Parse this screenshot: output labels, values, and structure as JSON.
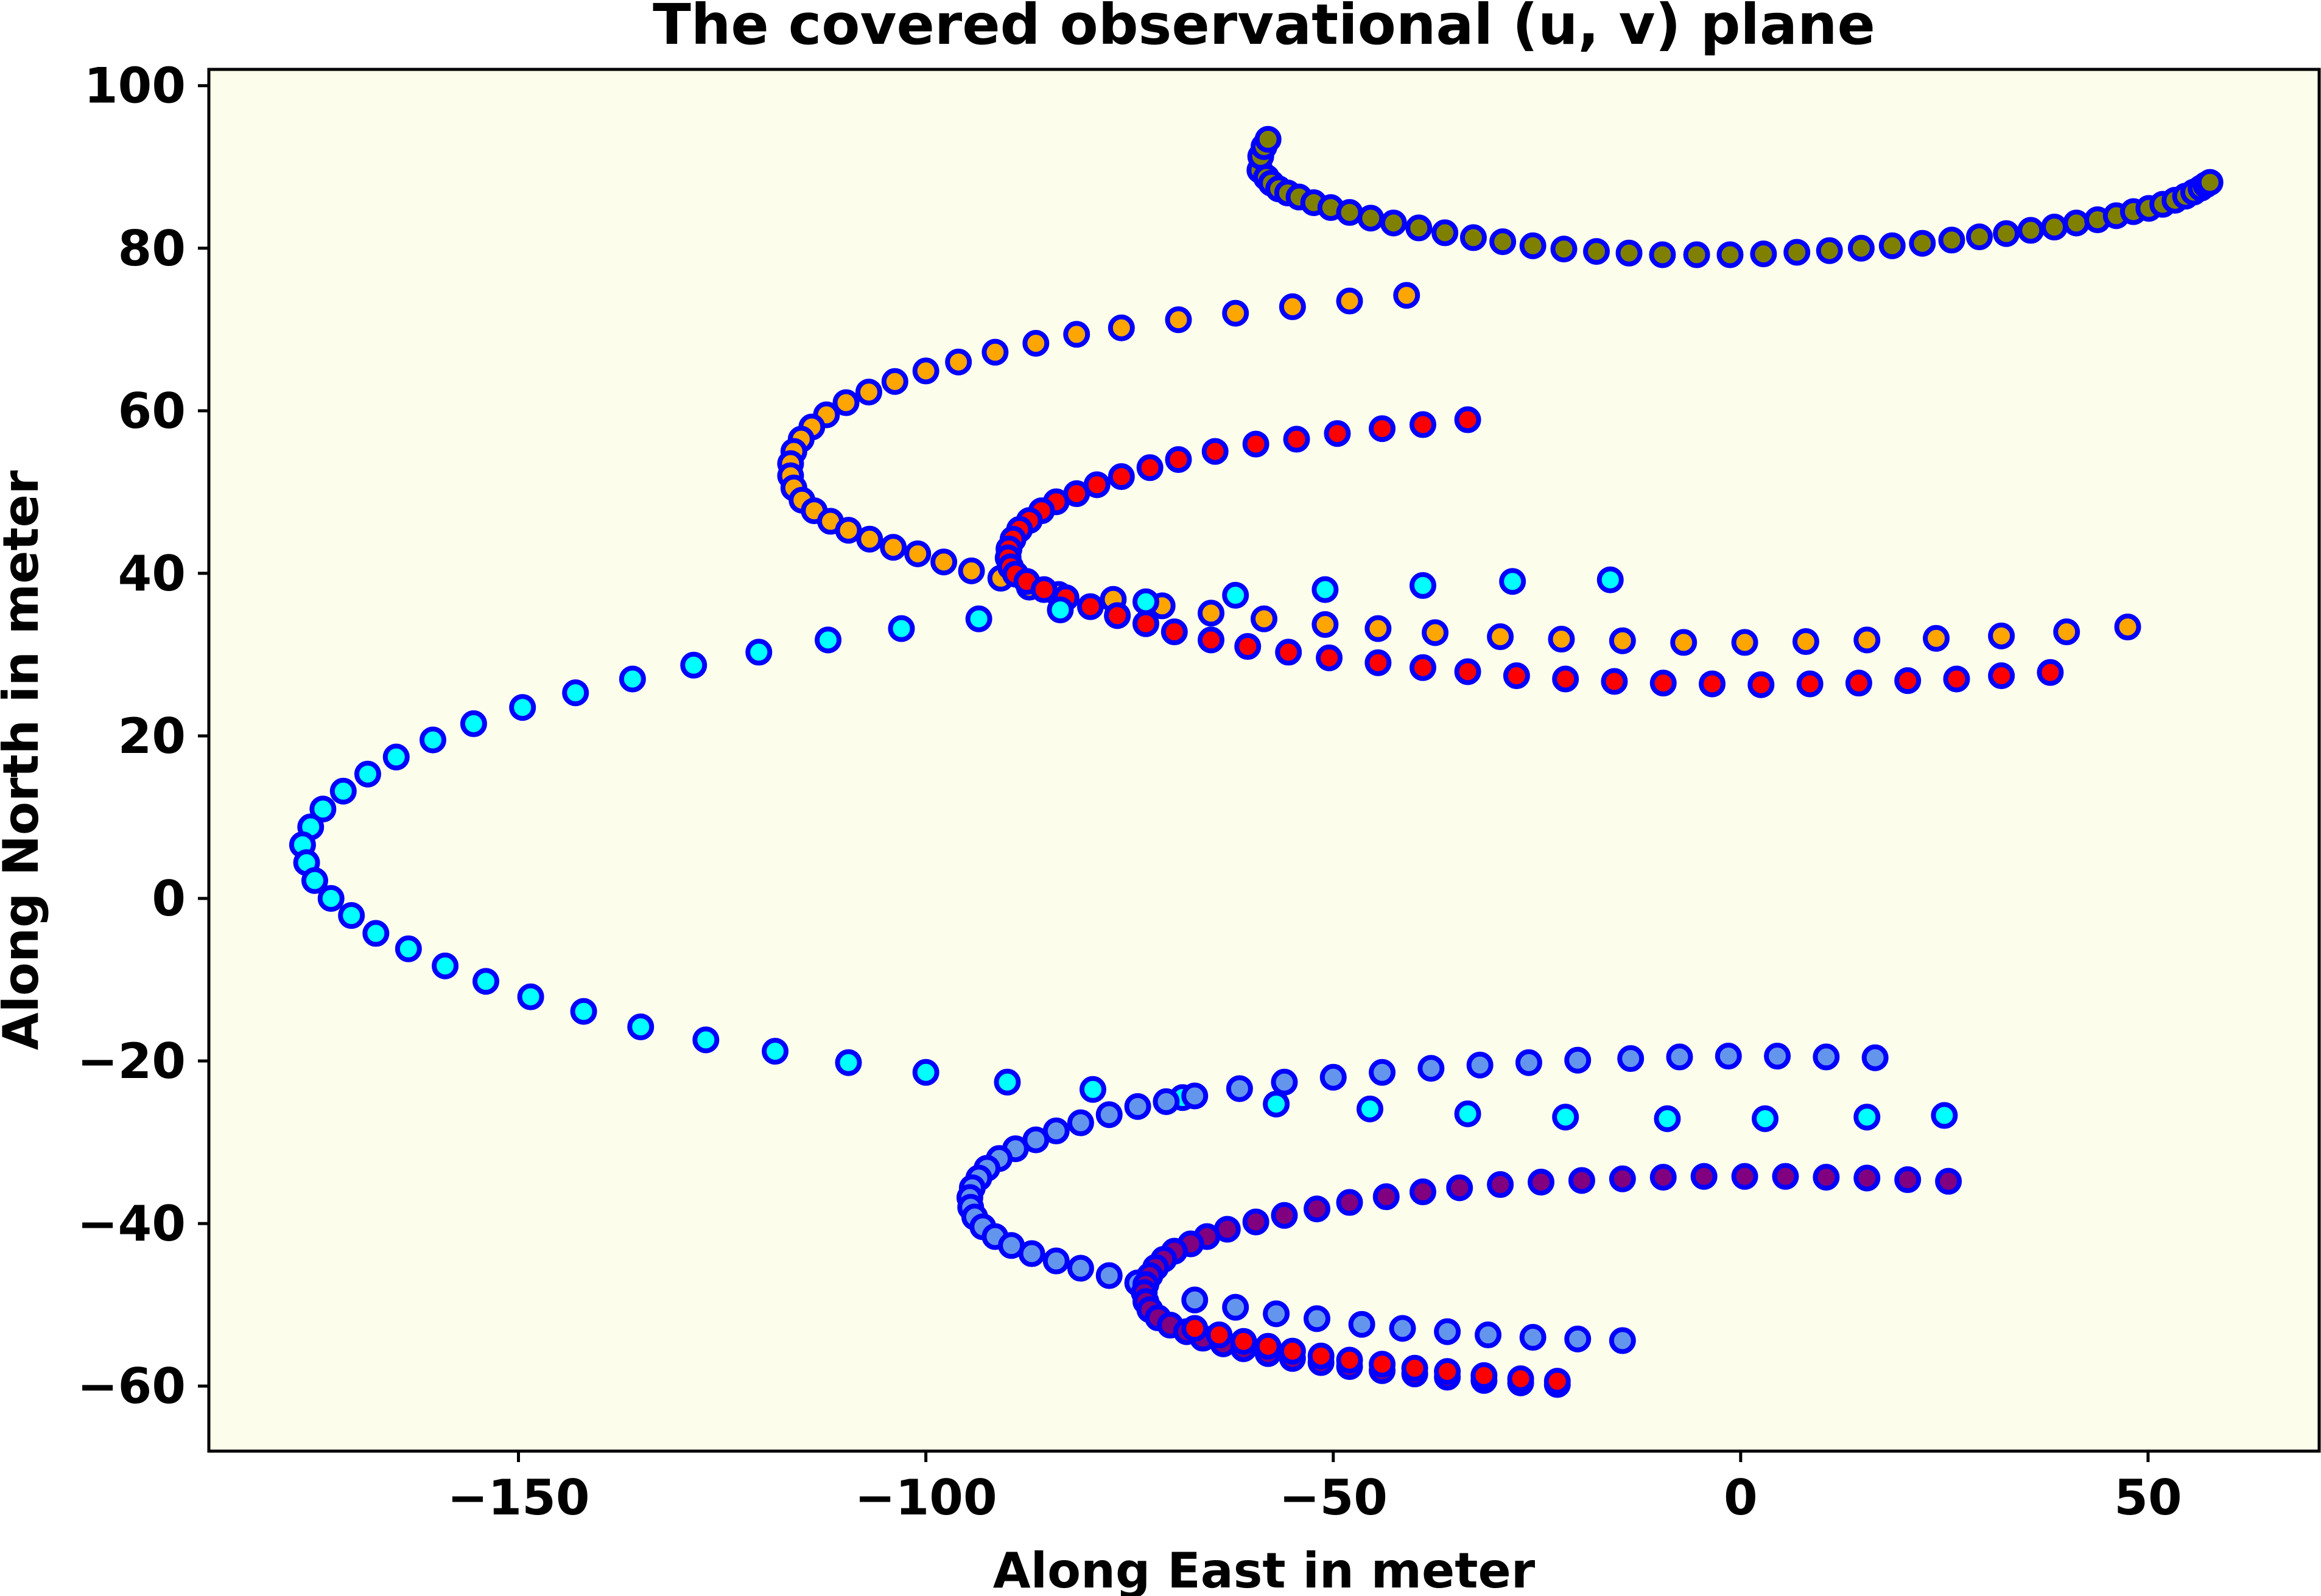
{
  "chart_data": {
    "type": "scatter",
    "title": "The covered observational (u, v) plane",
    "xlabel": "Along East in meter",
    "ylabel": "Along North in meter",
    "xlim": [
      -188,
      71
    ],
    "ylim": [
      -68,
      102
    ],
    "xticks": [
      -150,
      -100,
      -50,
      0,
      50
    ],
    "xtick_labels": [
      "−150",
      "−100",
      "−50",
      "0",
      "50"
    ],
    "yticks": [
      -60,
      -40,
      -20,
      0,
      20,
      40,
      60,
      80,
      100
    ],
    "ytick_labels": [
      "−60",
      "−40",
      "−20",
      "0",
      "20",
      "40",
      "60",
      "80",
      "100"
    ],
    "grid": false,
    "legend": "none",
    "colors": {
      "plot_background": "#fdfdeb",
      "marker_edge": "#0000ff"
    },
    "series": [
      {
        "color": "#808000",
        "points": [
          [
            -59.0,
            89.6
          ],
          [
            -58.9,
            91.3
          ],
          [
            -58.5,
            92.5
          ],
          [
            -58.0,
            93.4
          ],
          [
            -58.2,
            88.7
          ],
          [
            -57.6,
            88.0
          ],
          [
            -56.7,
            87.3
          ],
          [
            -55.6,
            86.8
          ],
          [
            -54.2,
            86.3
          ],
          [
            -52.4,
            85.6
          ],
          [
            -50.3,
            85.0
          ],
          [
            -48.0,
            84.4
          ],
          [
            -45.4,
            83.7
          ],
          [
            -42.6,
            83.1
          ],
          [
            -39.5,
            82.5
          ],
          [
            -36.3,
            81.9
          ],
          [
            -32.8,
            81.3
          ],
          [
            -29.2,
            80.8
          ],
          [
            -25.5,
            80.3
          ],
          [
            -21.7,
            79.9
          ],
          [
            -17.7,
            79.6
          ],
          [
            -13.7,
            79.4
          ],
          [
            -9.6,
            79.2
          ],
          [
            -5.4,
            79.2
          ],
          [
            -1.3,
            79.2
          ],
          [
            2.8,
            79.3
          ],
          [
            6.9,
            79.5
          ],
          [
            10.9,
            79.7
          ],
          [
            14.8,
            80.0
          ],
          [
            18.6,
            80.3
          ],
          [
            22.3,
            80.6
          ],
          [
            25.9,
            81.0
          ],
          [
            29.3,
            81.4
          ],
          [
            32.6,
            81.8
          ],
          [
            35.6,
            82.2
          ],
          [
            38.5,
            82.6
          ],
          [
            41.2,
            83.1
          ],
          [
            43.8,
            83.5
          ],
          [
            46.1,
            84.0
          ],
          [
            48.2,
            84.5
          ],
          [
            50.1,
            84.9
          ],
          [
            51.8,
            85.4
          ],
          [
            53.3,
            85.9
          ],
          [
            54.6,
            86.4
          ],
          [
            55.6,
            86.9
          ],
          [
            56.5,
            87.4
          ],
          [
            57.1,
            87.8
          ],
          [
            57.6,
            88.1
          ]
        ]
      },
      {
        "color": "#ffa500",
        "points": [
          [
            -41.0,
            74.2
          ],
          [
            -48.0,
            73.5
          ],
          [
            -55.0,
            72.8
          ],
          [
            -62.0,
            72.0
          ],
          [
            -69.0,
            71.2
          ],
          [
            -76.0,
            70.2
          ],
          [
            -81.5,
            69.4
          ],
          [
            -86.5,
            68.3
          ],
          [
            -91.5,
            67.2
          ],
          [
            -96.0,
            66.0
          ],
          [
            -100.0,
            64.9
          ],
          [
            -103.8,
            63.6
          ],
          [
            -107.0,
            62.3
          ],
          [
            -109.8,
            61.0
          ],
          [
            -112.2,
            59.5
          ],
          [
            -114.0,
            58.0
          ],
          [
            -115.3,
            56.5
          ],
          [
            -116.2,
            55.0
          ],
          [
            -116.6,
            53.5
          ],
          [
            -116.6,
            52.0
          ],
          [
            -116.2,
            50.5
          ],
          [
            -115.2,
            49.0
          ],
          [
            -113.7,
            47.7
          ],
          [
            -111.7,
            46.4
          ],
          [
            -109.5,
            45.3
          ],
          [
            -106.9,
            44.2
          ],
          [
            -104.0,
            43.2
          ],
          [
            -101.0,
            42.4
          ],
          [
            -97.8,
            41.4
          ],
          [
            -94.4,
            40.3
          ],
          [
            -90.8,
            39.4
          ],
          [
            -87.3,
            38.3
          ],
          [
            -83.7,
            37.4
          ],
          [
            -77.0,
            36.8
          ],
          [
            -71.0,
            36.0
          ],
          [
            -65.0,
            35.1
          ],
          [
            -58.5,
            34.4
          ],
          [
            -51.0,
            33.7
          ],
          [
            -44.5,
            33.2
          ],
          [
            -37.5,
            32.7
          ],
          [
            -29.5,
            32.2
          ],
          [
            -22.0,
            31.9
          ],
          [
            -14.5,
            31.7
          ],
          [
            -7.0,
            31.5
          ],
          [
            0.5,
            31.5
          ],
          [
            8.0,
            31.6
          ],
          [
            15.5,
            31.8
          ],
          [
            24.0,
            32.0
          ],
          [
            32.0,
            32.3
          ],
          [
            40.0,
            32.8
          ],
          [
            47.5,
            33.4
          ]
        ]
      },
      {
        "color": "#ff0000",
        "points": [
          [
            -33.5,
            58.9
          ],
          [
            -39.0,
            58.3
          ],
          [
            -44.0,
            57.8
          ],
          [
            -49.5,
            57.2
          ],
          [
            -54.5,
            56.5
          ],
          [
            -59.5,
            55.9
          ],
          [
            -64.5,
            55.0
          ],
          [
            -69.0,
            54.0
          ],
          [
            -72.5,
            53.0
          ],
          [
            -76.0,
            51.9
          ],
          [
            -79.0,
            50.9
          ],
          [
            -81.5,
            49.8
          ],
          [
            -84.0,
            48.8
          ],
          [
            -85.8,
            47.7
          ],
          [
            -87.3,
            46.5
          ],
          [
            -88.5,
            45.4
          ],
          [
            -89.3,
            44.2
          ],
          [
            -89.8,
            43.0
          ],
          [
            -89.9,
            41.9
          ],
          [
            -89.6,
            40.8
          ],
          [
            -89.0,
            39.9
          ],
          [
            -87.6,
            39.0
          ],
          [
            -85.5,
            38.0
          ],
          [
            -82.8,
            37.0
          ],
          [
            -79.8,
            35.9
          ],
          [
            -76.5,
            34.8
          ],
          [
            -73.0,
            33.8
          ],
          [
            -69.5,
            32.8
          ],
          [
            -65.0,
            31.8
          ],
          [
            -60.5,
            31.0
          ],
          [
            -55.5,
            30.3
          ],
          [
            -50.5,
            29.6
          ],
          [
            -44.5,
            29.0
          ],
          [
            -39.0,
            28.4
          ],
          [
            -33.5,
            27.9
          ],
          [
            -27.5,
            27.4
          ],
          [
            -21.5,
            27.0
          ],
          [
            -15.5,
            26.7
          ],
          [
            -9.5,
            26.5
          ],
          [
            -3.5,
            26.4
          ],
          [
            2.5,
            26.3
          ],
          [
            8.5,
            26.4
          ],
          [
            14.5,
            26.5
          ],
          [
            20.5,
            26.8
          ],
          [
            26.5,
            27.0
          ],
          [
            32.0,
            27.4
          ],
          [
            38.0,
            27.8
          ]
        ]
      },
      {
        "color": "#00ffff",
        "points": [
          [
            -16.0,
            39.2
          ],
          [
            -28.0,
            39.0
          ],
          [
            -39.0,
            38.5
          ],
          [
            -51.0,
            38.0
          ],
          [
            -62.0,
            37.3
          ],
          [
            -73.0,
            36.5
          ],
          [
            -83.5,
            35.5
          ],
          [
            -93.5,
            34.4
          ],
          [
            -103.0,
            33.2
          ],
          [
            -112.0,
            31.8
          ],
          [
            -120.5,
            30.3
          ],
          [
            -128.5,
            28.7
          ],
          [
            -136.0,
            27.0
          ],
          [
            -143.0,
            25.3
          ],
          [
            -149.5,
            23.5
          ],
          [
            -155.5,
            21.5
          ],
          [
            -160.5,
            19.5
          ],
          [
            -165.0,
            17.4
          ],
          [
            -168.5,
            15.3
          ],
          [
            -171.5,
            13.2
          ],
          [
            -174.0,
            11.0
          ],
          [
            -175.5,
            8.8
          ],
          [
            -176.5,
            6.6
          ],
          [
            -176.0,
            4.4
          ],
          [
            -175.0,
            2.2
          ],
          [
            -173.0,
            0.0
          ],
          [
            -170.5,
            -2.1
          ],
          [
            -167.5,
            -4.3
          ],
          [
            -163.5,
            -6.2
          ],
          [
            -159.0,
            -8.3
          ],
          [
            -154.0,
            -10.2
          ],
          [
            -148.5,
            -12.1
          ],
          [
            -142.0,
            -13.9
          ],
          [
            -135.0,
            -15.8
          ],
          [
            -127.0,
            -17.4
          ],
          [
            -118.5,
            -18.8
          ],
          [
            -109.5,
            -20.2
          ],
          [
            -100.0,
            -21.4
          ],
          [
            -90.0,
            -22.6
          ],
          [
            -79.5,
            -23.5
          ],
          [
            -68.5,
            -24.5
          ],
          [
            -57.0,
            -25.3
          ],
          [
            -45.5,
            -25.9
          ],
          [
            -33.5,
            -26.5
          ],
          [
            -21.5,
            -26.9
          ],
          [
            -9.0,
            -27.1
          ],
          [
            3.0,
            -27.1
          ],
          [
            15.5,
            -26.9
          ],
          [
            25.0,
            -26.7
          ]
        ]
      },
      {
        "color": "#6495ed",
        "points": [
          [
            16.5,
            -19.6
          ],
          [
            10.5,
            -19.5
          ],
          [
            4.5,
            -19.4
          ],
          [
            -1.5,
            -19.4
          ],
          [
            -7.5,
            -19.5
          ],
          [
            -13.5,
            -19.7
          ],
          [
            -20.0,
            -19.9
          ],
          [
            -26.0,
            -20.2
          ],
          [
            -32.0,
            -20.5
          ],
          [
            -38.0,
            -20.9
          ],
          [
            -44.0,
            -21.4
          ],
          [
            -50.0,
            -22.0
          ],
          [
            -56.0,
            -22.6
          ],
          [
            -61.5,
            -23.4
          ],
          [
            -67.0,
            -24.3
          ],
          [
            -70.5,
            -25.0
          ],
          [
            -74.0,
            -25.6
          ],
          [
            -77.5,
            -26.6
          ],
          [
            -81.0,
            -27.6
          ],
          [
            -84.0,
            -28.6
          ],
          [
            -86.5,
            -29.7
          ],
          [
            -89.0,
            -30.8
          ],
          [
            -91.0,
            -32.0
          ],
          [
            -92.5,
            -33.2
          ],
          [
            -93.5,
            -34.4
          ],
          [
            -94.3,
            -35.6
          ],
          [
            -94.6,
            -36.8
          ],
          [
            -94.5,
            -38.0
          ],
          [
            -94.0,
            -39.2
          ],
          [
            -93.0,
            -40.4
          ],
          [
            -91.5,
            -41.6
          ],
          [
            -89.5,
            -42.7
          ],
          [
            -87.0,
            -43.7
          ],
          [
            -84.0,
            -44.6
          ],
          [
            -81.0,
            -45.5
          ],
          [
            -77.5,
            -46.4
          ],
          [
            -74.0,
            -47.3
          ],
          [
            -67.0,
            -49.4
          ],
          [
            -62.0,
            -50.3
          ],
          [
            -57.0,
            -51.1
          ],
          [
            -52.0,
            -51.7
          ],
          [
            -46.5,
            -52.4
          ],
          [
            -41.5,
            -52.9
          ],
          [
            -36.0,
            -53.3
          ],
          [
            -31.0,
            -53.7
          ],
          [
            -25.5,
            -54.0
          ],
          [
            -20.0,
            -54.2
          ],
          [
            -14.5,
            -54.4
          ]
        ]
      },
      {
        "color": "#800080",
        "points": [
          [
            25.5,
            -34.8
          ],
          [
            20.5,
            -34.6
          ],
          [
            15.5,
            -34.4
          ],
          [
            10.5,
            -34.3
          ],
          [
            5.5,
            -34.2
          ],
          [
            0.5,
            -34.2
          ],
          [
            -4.5,
            -34.2
          ],
          [
            -9.5,
            -34.3
          ],
          [
            -14.5,
            -34.5
          ],
          [
            -19.5,
            -34.7
          ],
          [
            -24.5,
            -34.9
          ],
          [
            -29.5,
            -35.2
          ],
          [
            -34.5,
            -35.6
          ],
          [
            -39.0,
            -36.1
          ],
          [
            -43.5,
            -36.7
          ],
          [
            -48.0,
            -37.4
          ],
          [
            -52.0,
            -38.2
          ],
          [
            -56.0,
            -39.0
          ],
          [
            -59.5,
            -39.8
          ],
          [
            -63.0,
            -40.7
          ],
          [
            -65.5,
            -41.6
          ],
          [
            -67.5,
            -42.5
          ],
          [
            -69.5,
            -43.4
          ],
          [
            -70.8,
            -44.4
          ],
          [
            -71.8,
            -45.4
          ],
          [
            -72.5,
            -46.4
          ],
          [
            -73.0,
            -47.5
          ],
          [
            -73.2,
            -48.5
          ],
          [
            -73.0,
            -49.6
          ],
          [
            -72.5,
            -50.6
          ],
          [
            -71.5,
            -51.6
          ],
          [
            -70.0,
            -52.5
          ],
          [
            -68.0,
            -53.3
          ],
          [
            -66.0,
            -54.1
          ],
          [
            -63.5,
            -54.8
          ],
          [
            -61.0,
            -55.4
          ],
          [
            -58.0,
            -56.0
          ],
          [
            -55.0,
            -56.6
          ],
          [
            -51.5,
            -57.1
          ],
          [
            -48.0,
            -57.6
          ],
          [
            -44.0,
            -58.1
          ],
          [
            -40.0,
            -58.5
          ],
          [
            -36.0,
            -58.9
          ],
          [
            -31.5,
            -59.3
          ],
          [
            -27.0,
            -59.6
          ],
          [
            -22.5,
            -59.8
          ]
        ]
      },
      {
        "color": "#ff0000",
        "points": [
          [
            -67.0,
            -52.9
          ],
          [
            -64.0,
            -53.7
          ],
          [
            -61.0,
            -54.5
          ],
          [
            -58.0,
            -55.1
          ],
          [
            -55.0,
            -55.7
          ],
          [
            -51.5,
            -56.3
          ],
          [
            -48.0,
            -56.8
          ],
          [
            -44.0,
            -57.3
          ],
          [
            -40.0,
            -57.8
          ],
          [
            -36.0,
            -58.2
          ],
          [
            -31.5,
            -58.7
          ],
          [
            -27.0,
            -59.1
          ],
          [
            -22.5,
            -59.4
          ]
        ]
      }
    ]
  }
}
